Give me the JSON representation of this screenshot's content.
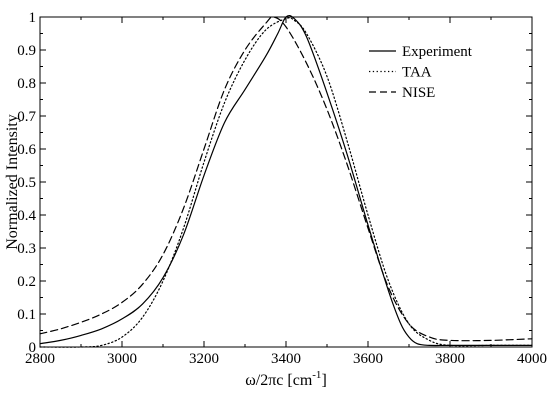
{
  "chart_data": {
    "type": "line",
    "title": "",
    "xlabel": "ω/2πc [cm",
    "xlabel_sup": "-1",
    "xlabel_suffix": "]",
    "ylabel": "Normalized Intensity",
    "xlim": [
      2800,
      4000
    ],
    "ylim": [
      0,
      1
    ],
    "x_ticks": [
      2800,
      3000,
      3200,
      3400,
      3600,
      3800,
      4000
    ],
    "y_ticks": [
      0,
      0.1,
      0.2,
      0.3,
      0.4,
      0.5,
      0.6,
      0.7,
      0.8,
      0.9,
      1
    ],
    "y_tick_labels": [
      "0",
      "0.1",
      "0.2",
      "0.3",
      "0.4",
      "0.5",
      "0.6",
      "0.7",
      "0.8",
      "0.9",
      "1"
    ],
    "grid": false,
    "legend_position": "top-right",
    "series": [
      {
        "name": "Experiment",
        "style": "solid",
        "color": "#000000",
        "x": [
          2800,
          2850,
          2900,
          2950,
          3000,
          3050,
          3100,
          3150,
          3200,
          3250,
          3300,
          3350,
          3380,
          3400,
          3420,
          3450,
          3500,
          3550,
          3600,
          3650,
          3680,
          3700,
          3720,
          3750,
          3800,
          3900,
          4000
        ],
        "y": [
          0.01,
          0.02,
          0.035,
          0.055,
          0.085,
          0.13,
          0.21,
          0.34,
          0.52,
          0.68,
          0.78,
          0.88,
          0.95,
          1.0,
          0.995,
          0.94,
          0.77,
          0.58,
          0.37,
          0.17,
          0.07,
          0.03,
          0.01,
          0.005,
          0.005,
          0.005,
          0.005
        ]
      },
      {
        "name": "TAA",
        "style": "dotted",
        "color": "#000000",
        "x": [
          2800,
          2900,
          2950,
          3000,
          3050,
          3100,
          3150,
          3200,
          3250,
          3300,
          3350,
          3400,
          3420,
          3450,
          3500,
          3550,
          3600,
          3650,
          3700,
          3750,
          3800,
          3900,
          4000
        ],
        "y": [
          0,
          0.0,
          0.005,
          0.03,
          0.09,
          0.2,
          0.36,
          0.56,
          0.74,
          0.87,
          0.96,
          0.995,
          0.99,
          0.95,
          0.82,
          0.62,
          0.4,
          0.2,
          0.07,
          0.02,
          0.005,
          0.005,
          0.005
        ]
      },
      {
        "name": "NISE",
        "style": "dashed",
        "color": "#000000",
        "x": [
          2800,
          2850,
          2900,
          2950,
          3000,
          3050,
          3100,
          3150,
          3200,
          3250,
          3300,
          3350,
          3370,
          3400,
          3450,
          3500,
          3550,
          3600,
          3650,
          3700,
          3750,
          3800,
          3900,
          4000
        ],
        "y": [
          0.04,
          0.055,
          0.075,
          0.1,
          0.135,
          0.19,
          0.28,
          0.42,
          0.6,
          0.78,
          0.9,
          0.98,
          1.0,
          0.97,
          0.86,
          0.72,
          0.55,
          0.36,
          0.18,
          0.07,
          0.03,
          0.02,
          0.02,
          0.025
        ]
      }
    ]
  }
}
